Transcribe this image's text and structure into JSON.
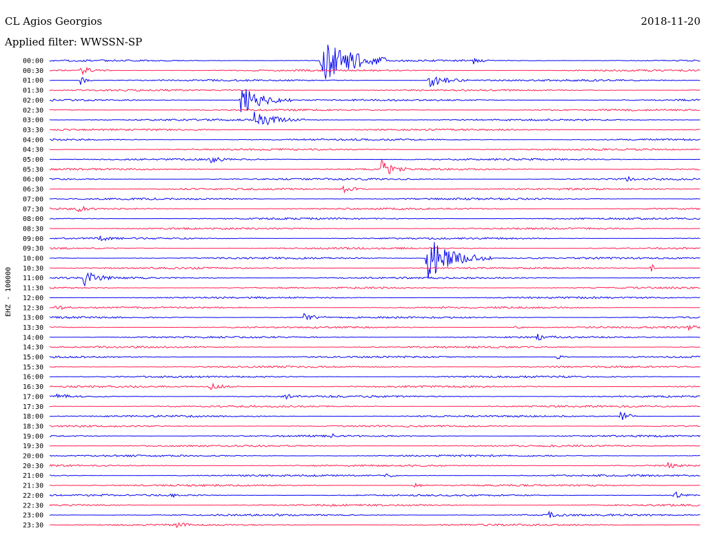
{
  "chart_data": {
    "type": "line",
    "title": "CL Agios Georgios",
    "date": "2018-11-20",
    "subtitle": "Applied filter: WWSSN-SP",
    "ylabel": "EHZ - 100000",
    "row_labels": [
      "00:00",
      "00:30",
      "01:00",
      "01:30",
      "02:00",
      "02:30",
      "03:00",
      "03:30",
      "04:00",
      "04:30",
      "05:00",
      "05:30",
      "06:00",
      "06:30",
      "07:00",
      "07:30",
      "08:00",
      "08:30",
      "09:00",
      "09:30",
      "10:00",
      "10:30",
      "11:00",
      "11:30",
      "12:00",
      "12:30",
      "13:00",
      "13:30",
      "14:00",
      "14:30",
      "15:00",
      "15:30",
      "16:00",
      "16:30",
      "17:00",
      "17:30",
      "18:00",
      "18:30",
      "19:00",
      "19:30",
      "20:00",
      "20:30",
      "21:00",
      "21:30",
      "22:00",
      "22:30",
      "23:00",
      "23:30"
    ],
    "trace_colors": [
      "#0000ee",
      "#ff1a4d"
    ],
    "grid": false,
    "events": [
      {
        "row": 0,
        "minute": 12.5,
        "amplitude": 10,
        "duration": 2.5
      },
      {
        "row": 0,
        "minute": 19.5,
        "amplitude": 1.5,
        "duration": 0.6
      },
      {
        "row": 1,
        "minute": 1.4,
        "amplitude": 1.5,
        "duration": 1.2
      },
      {
        "row": 2,
        "minute": 1.4,
        "amplitude": 2,
        "duration": 0.5
      },
      {
        "row": 2,
        "minute": 17.5,
        "amplitude": 2.5,
        "duration": 1.5
      },
      {
        "row": 4,
        "minute": 8.8,
        "amplitude": 5,
        "duration": 2.0
      },
      {
        "row": 6,
        "minute": 9.4,
        "amplitude": 3,
        "duration": 2.0
      },
      {
        "row": 10,
        "minute": 7.4,
        "amplitude": 1.5,
        "duration": 0.8
      },
      {
        "row": 11,
        "minute": 15.3,
        "amplitude": 3,
        "duration": 1.0
      },
      {
        "row": 12,
        "minute": 26.6,
        "amplitude": 1.2,
        "duration": 0.4
      },
      {
        "row": 13,
        "minute": 13.5,
        "amplitude": 1.5,
        "duration": 1.0
      },
      {
        "row": 15,
        "minute": 1.3,
        "amplitude": 1,
        "duration": 0.8
      },
      {
        "row": 18,
        "minute": 2.3,
        "amplitude": 1.2,
        "duration": 0.6
      },
      {
        "row": 20,
        "minute": 17.4,
        "amplitude": 8,
        "duration": 2.5
      },
      {
        "row": 21,
        "minute": 27.7,
        "amplitude": 1.8,
        "duration": 0.4
      },
      {
        "row": 22,
        "minute": 1.5,
        "amplitude": 3,
        "duration": 1.2
      },
      {
        "row": 25,
        "minute": 0.3,
        "amplitude": 1.2,
        "duration": 0.8
      },
      {
        "row": 26,
        "minute": 11.7,
        "amplitude": 1.5,
        "duration": 1.0
      },
      {
        "row": 27,
        "minute": 21.5,
        "amplitude": 1.2,
        "duration": 0.5
      },
      {
        "row": 27,
        "minute": 29.4,
        "amplitude": 1.2,
        "duration": 0.6
      },
      {
        "row": 28,
        "minute": 22.5,
        "amplitude": 1.2,
        "duration": 0.8
      },
      {
        "row": 30,
        "minute": 23.4,
        "amplitude": 1,
        "duration": 0.5
      },
      {
        "row": 33,
        "minute": 7.4,
        "amplitude": 1.3,
        "duration": 1.2
      },
      {
        "row": 34,
        "minute": 0.3,
        "amplitude": 1,
        "duration": 1.0
      },
      {
        "row": 34,
        "minute": 10.8,
        "amplitude": 1,
        "duration": 0.8
      },
      {
        "row": 36,
        "minute": 26.3,
        "amplitude": 3,
        "duration": 0.6
      },
      {
        "row": 38,
        "minute": 13.0,
        "amplitude": 1,
        "duration": 0.3
      },
      {
        "row": 41,
        "minute": 28.5,
        "amplitude": 1,
        "duration": 0.6
      },
      {
        "row": 42,
        "minute": 15.5,
        "amplitude": 1,
        "duration": 0.5
      },
      {
        "row": 43,
        "minute": 16.8,
        "amplitude": 1.2,
        "duration": 0.6
      },
      {
        "row": 44,
        "minute": 5.6,
        "amplitude": 1,
        "duration": 0.3
      },
      {
        "row": 44,
        "minute": 28.8,
        "amplitude": 1.5,
        "duration": 0.6
      },
      {
        "row": 46,
        "minute": 23.0,
        "amplitude": 1,
        "duration": 0.6
      },
      {
        "row": 47,
        "minute": 5.8,
        "amplitude": 1.2,
        "duration": 0.6
      }
    ]
  }
}
